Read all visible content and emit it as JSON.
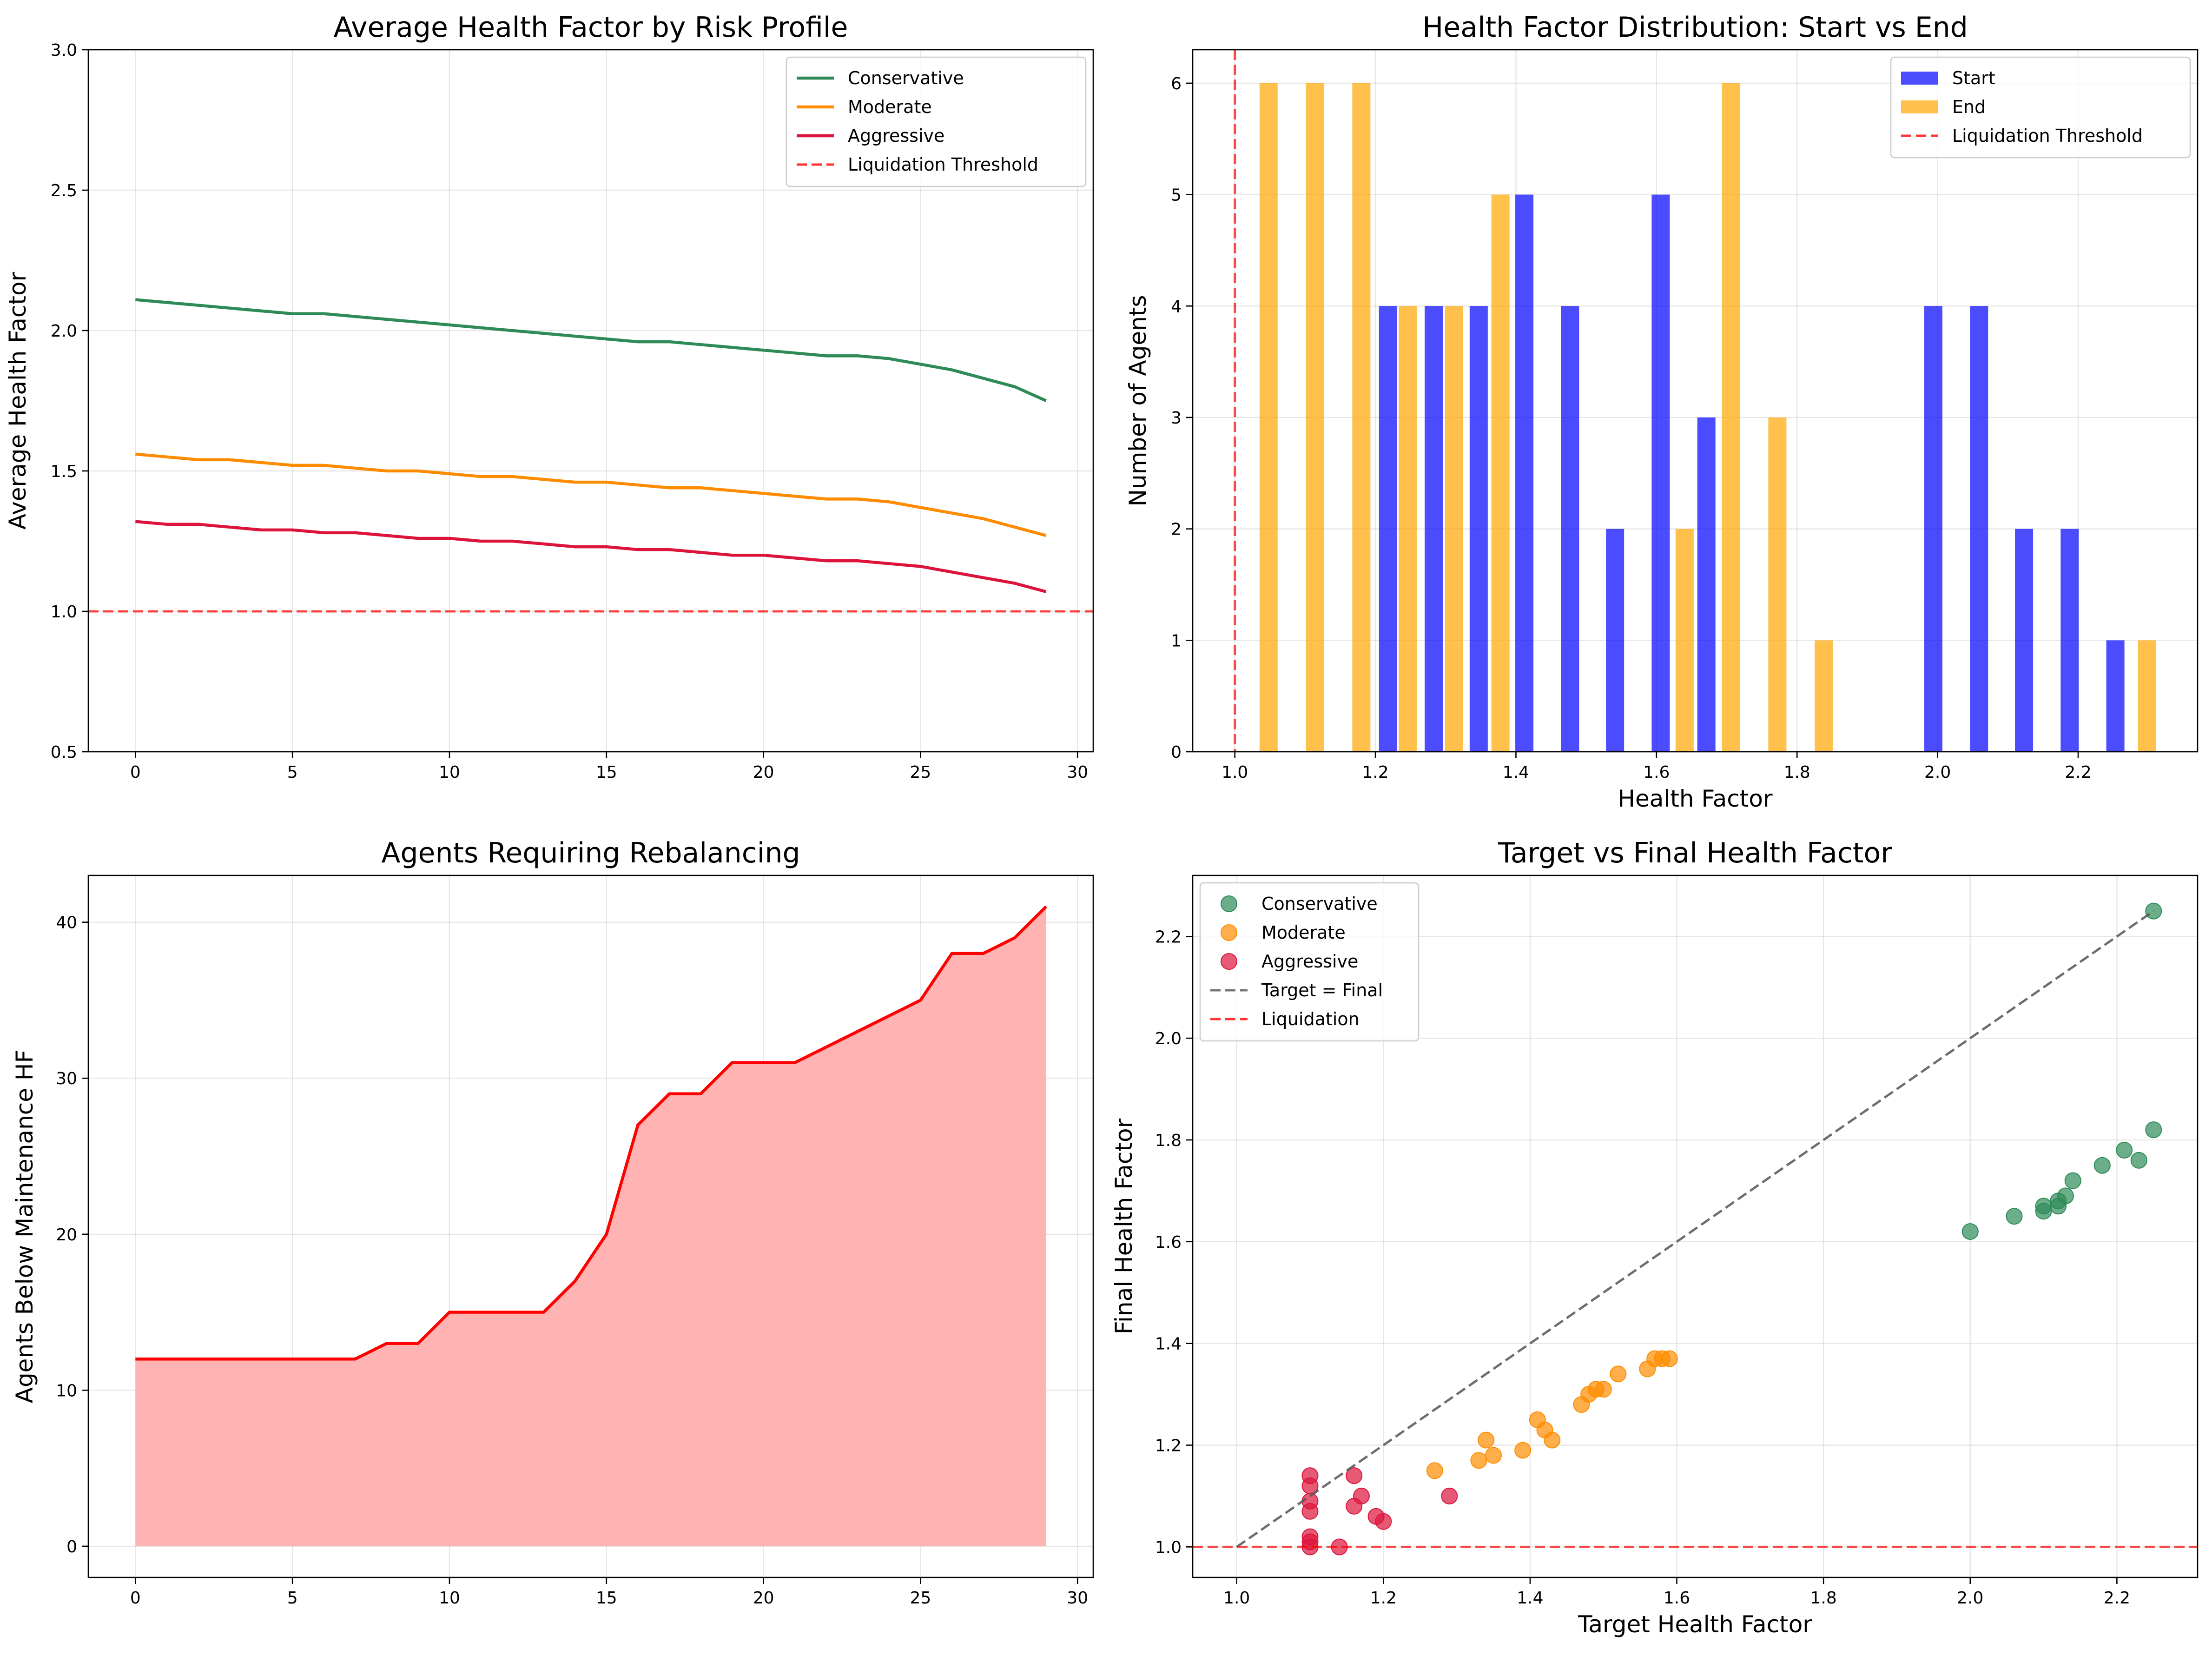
{
  "chart_data": [
    {
      "type": "line",
      "title": "Average Health Factor by Risk Profile",
      "xlabel": "",
      "ylabel": "Average Health Factor",
      "xlim": [
        -1.5,
        30.5
      ],
      "ylim": [
        0.5,
        3.0
      ],
      "xticks": [
        0,
        5,
        10,
        15,
        20,
        25,
        30
      ],
      "yticks": [
        0.5,
        1.0,
        1.5,
        2.0,
        2.5,
        3.0
      ],
      "grid": true,
      "legend_position": "top-right",
      "x": [
        0,
        1,
        2,
        3,
        4,
        5,
        6,
        7,
        8,
        9,
        10,
        11,
        12,
        13,
        14,
        15,
        16,
        17,
        18,
        19,
        20,
        21,
        22,
        23,
        24,
        25,
        26,
        27,
        28,
        29
      ],
      "series": [
        {
          "name": "Conservative",
          "color": "#2e8b57",
          "style": "solid",
          "values": [
            2.11,
            2.1,
            2.09,
            2.08,
            2.07,
            2.06,
            2.06,
            2.05,
            2.04,
            2.03,
            2.02,
            2.01,
            2.0,
            1.99,
            1.98,
            1.97,
            1.96,
            1.96,
            1.95,
            1.94,
            1.93,
            1.92,
            1.91,
            1.91,
            1.9,
            1.88,
            1.86,
            1.83,
            1.8,
            1.75
          ]
        },
        {
          "name": "Moderate",
          "color": "#ff8c00",
          "style": "solid",
          "values": [
            1.56,
            1.55,
            1.54,
            1.54,
            1.53,
            1.52,
            1.52,
            1.51,
            1.5,
            1.5,
            1.49,
            1.48,
            1.48,
            1.47,
            1.46,
            1.46,
            1.45,
            1.44,
            1.44,
            1.43,
            1.42,
            1.41,
            1.4,
            1.4,
            1.39,
            1.37,
            1.35,
            1.33,
            1.3,
            1.27
          ]
        },
        {
          "name": "Aggressive",
          "color": "#dc143c",
          "style": "solid",
          "values": [
            1.32,
            1.31,
            1.31,
            1.3,
            1.29,
            1.29,
            1.28,
            1.28,
            1.27,
            1.26,
            1.26,
            1.25,
            1.25,
            1.24,
            1.23,
            1.23,
            1.22,
            1.22,
            1.21,
            1.2,
            1.2,
            1.19,
            1.18,
            1.18,
            1.17,
            1.16,
            1.14,
            1.12,
            1.1,
            1.07
          ]
        }
      ],
      "hlines": [
        {
          "name": "Liquidation Threshold",
          "y": 1.0,
          "color": "#ff0000"
        }
      ]
    },
    {
      "type": "bar",
      "title": "Health Factor Distribution: Start vs End",
      "xlabel": "Health Factor",
      "ylabel": "Number of Agents",
      "xlim": [
        0.94,
        2.37
      ],
      "ylim": [
        0,
        6.3
      ],
      "xticks": [
        1.0,
        1.2,
        1.4,
        1.6,
        1.8,
        2.0,
        2.2
      ],
      "yticks": [
        0,
        1,
        2,
        3,
        4,
        5,
        6
      ],
      "grid": true,
      "legend_position": "top-right",
      "bar_width": 0.0258,
      "series": [
        {
          "name": "Start",
          "color": "#0000ff",
          "x": [
            1.218,
            1.283,
            1.347,
            1.412,
            1.477,
            1.541,
            1.606,
            1.671,
            1.994,
            2.059,
            2.123,
            2.188,
            2.253
          ],
          "values": [
            4,
            4,
            4,
            5,
            4,
            2,
            5,
            3,
            4,
            4,
            2,
            2,
            1
          ]
        },
        {
          "name": "End",
          "color": "#ffa500",
          "x": [
            1.048,
            1.114,
            1.18,
            1.246,
            1.312,
            1.378,
            1.64,
            1.706,
            1.772,
            1.838,
            2.298
          ],
          "values": [
            6,
            6,
            6,
            4,
            4,
            5,
            2,
            6,
            3,
            1,
            1
          ]
        }
      ],
      "vlines": [
        {
          "name": "Liquidation Threshold",
          "x": 1.0,
          "color": "#ff0000"
        }
      ]
    },
    {
      "type": "area",
      "title": "Agents Requiring Rebalancing",
      "xlabel": "",
      "ylabel": "Agents Below Maintenance HF",
      "xlim": [
        -1.5,
        30.5
      ],
      "ylim": [
        -2,
        43
      ],
      "xticks": [
        0,
        5,
        10,
        15,
        20,
        25,
        30
      ],
      "yticks": [
        0,
        10,
        20,
        30,
        40
      ],
      "grid": true,
      "x": [
        0,
        1,
        2,
        3,
        4,
        5,
        6,
        7,
        8,
        9,
        10,
        11,
        12,
        13,
        14,
        15,
        16,
        17,
        18,
        19,
        20,
        21,
        22,
        23,
        24,
        25,
        26,
        27,
        28,
        29
      ],
      "series": [
        {
          "name": "",
          "color": "#ff0000",
          "fill": "#ffb3b3",
          "values": [
            12,
            12,
            12,
            12,
            12,
            12,
            12,
            12,
            13,
            13,
            15,
            15,
            15,
            15,
            17,
            20,
            27,
            29,
            29,
            31,
            31,
            31,
            32,
            33,
            34,
            35,
            38,
            38,
            39,
            41
          ]
        }
      ]
    },
    {
      "type": "scatter",
      "title": "Target vs Final Health Factor",
      "xlabel": "Target Health Factor",
      "ylabel": "Final Health Factor",
      "xlim": [
        0.94,
        2.31
      ],
      "ylim": [
        0.94,
        2.32
      ],
      "xticks": [
        1.0,
        1.2,
        1.4,
        1.6,
        1.8,
        2.0,
        2.2
      ],
      "yticks": [
        1.0,
        1.2,
        1.4,
        1.6,
        1.8,
        2.0,
        2.2
      ],
      "grid": true,
      "legend_position": "top-left",
      "series": [
        {
          "name": "Conservative",
          "color": "#2e8b57",
          "points": [
            [
              2.25,
              2.25
            ],
            [
              2.25,
              1.82
            ],
            [
              2.21,
              1.78
            ],
            [
              2.23,
              1.76
            ],
            [
              2.18,
              1.75
            ],
            [
              2.14,
              1.72
            ],
            [
              2.13,
              1.69
            ],
            [
              2.12,
              1.68
            ],
            [
              2.12,
              1.67
            ],
            [
              2.1,
              1.67
            ],
            [
              2.1,
              1.66
            ],
            [
              2.06,
              1.65
            ],
            [
              2.0,
              1.62
            ]
          ]
        },
        {
          "name": "Moderate",
          "color": "#ff8c00",
          "points": [
            [
              1.59,
              1.37
            ],
            [
              1.58,
              1.37
            ],
            [
              1.57,
              1.37
            ],
            [
              1.56,
              1.35
            ],
            [
              1.52,
              1.34
            ],
            [
              1.5,
              1.31
            ],
            [
              1.49,
              1.31
            ],
            [
              1.48,
              1.3
            ],
            [
              1.47,
              1.28
            ],
            [
              1.41,
              1.25
            ],
            [
              1.42,
              1.23
            ],
            [
              1.34,
              1.21
            ],
            [
              1.43,
              1.21
            ],
            [
              1.39,
              1.19
            ],
            [
              1.35,
              1.18
            ],
            [
              1.33,
              1.17
            ],
            [
              1.27,
              1.15
            ]
          ]
        },
        {
          "name": "Aggressive",
          "color": "#dc143c",
          "points": [
            [
              1.1,
              1.14
            ],
            [
              1.1,
              1.12
            ],
            [
              1.16,
              1.14
            ],
            [
              1.17,
              1.1
            ],
            [
              1.16,
              1.08
            ],
            [
              1.1,
              1.09
            ],
            [
              1.1,
              1.07
            ],
            [
              1.19,
              1.06
            ],
            [
              1.2,
              1.05
            ],
            [
              1.29,
              1.1
            ],
            [
              1.1,
              1.02
            ],
            [
              1.1,
              1.01
            ],
            [
              1.1,
              1.0
            ],
            [
              1.14,
              1.0
            ]
          ]
        }
      ],
      "lines": [
        {
          "name": "Target = Final",
          "color": "#555555",
          "points": [
            [
              1.0,
              1.0
            ],
            [
              2.25,
              2.25
            ]
          ]
        }
      ],
      "hlines": [
        {
          "name": "Liquidation",
          "y": 1.0,
          "color": "#ff0000"
        }
      ]
    }
  ]
}
